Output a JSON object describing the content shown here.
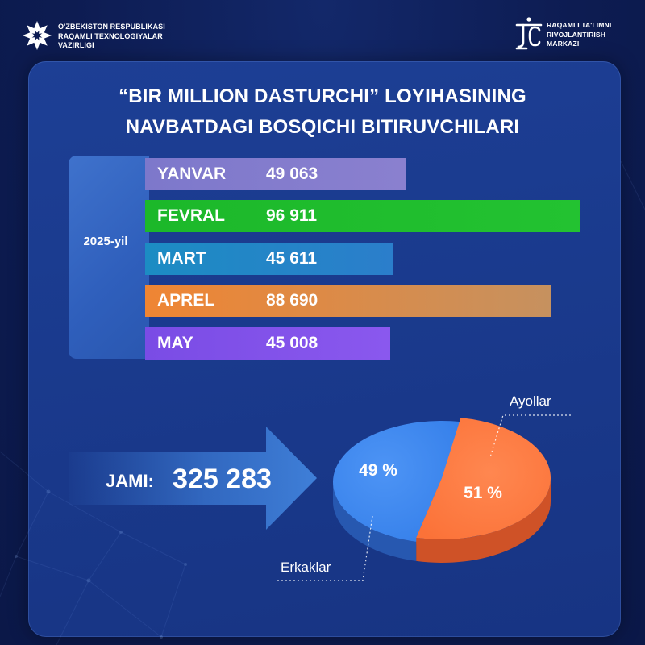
{
  "header": {
    "left_org_lines": [
      "O'ZBEKISTON RESPUBLIKASI",
      "RAQAMLI TEXNOLOGIYALAR",
      "VAZIRLIGI"
    ],
    "right_org_lines": [
      "RAQAMLI TA'LIMNI",
      "RIVOJLANTIRISH",
      "MARKAZI"
    ],
    "left_logo": "ministry-emblem-icon",
    "right_logo": "center-logo-icon"
  },
  "chart_data": [
    {
      "type": "bar",
      "orientation": "horizontal",
      "title_lines": [
        "“BIR MILLION DASTURCHI” LOYIHASINING",
        "NAVBATDAGI BOSQICHI BITIRUVCHILARI"
      ],
      "group_label": "2025-yil",
      "categories": [
        "YANVAR",
        "FEVRAL",
        "MART",
        "APREL",
        "MAY"
      ],
      "values": [
        49063,
        96911,
        45611,
        88690,
        45008
      ],
      "value_labels": [
        "49 063",
        "96 911",
        "45 611",
        "88 690",
        "45 008"
      ],
      "colors": [
        "#7d78cb",
        "#1cb82a",
        "#1c8cc3",
        "#ef8533",
        "#7a4ce5"
      ],
      "colors_end": [
        "#8a80cf",
        "#23c231",
        "#2b7ecb",
        "#c6915f",
        "#8a58ee"
      ],
      "grid": false,
      "legend": "none"
    },
    {
      "type": "pie",
      "slices": [
        {
          "name": "Erkaklar",
          "value": 49,
          "label": "49 %",
          "color": "#3c86ee",
          "shade": "#2758b0"
        },
        {
          "name": "Ayollar",
          "value": 51,
          "label": "51 %",
          "color": "#ff7a42",
          "shade": "#cf5227"
        }
      ]
    }
  ],
  "total": {
    "label": "JAMI:",
    "value": "325 283"
  }
}
